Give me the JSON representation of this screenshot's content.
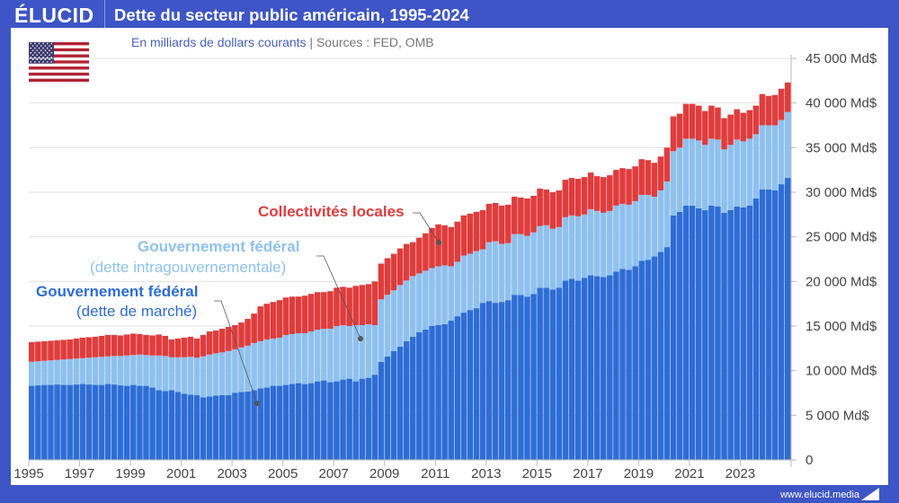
{
  "header": {
    "logo": "ÉLUCID",
    "title": "Dette du secteur public américain, 1995-2024"
  },
  "subtitle": {
    "unit": "En milliards de dollars courants",
    "sep": " | ",
    "sources": "Sources : FED, OMB"
  },
  "footer": {
    "site": "www.elucid.media"
  },
  "flag_icon": "us-flag",
  "colors": {
    "frame": "#3d55c6",
    "market": "#2e6dd5",
    "intra": "#8fc1ef",
    "local": "#e03c3c"
  },
  "annotations": {
    "local": "Collectivités locales",
    "intra_1": "Gouvernement fédéral",
    "intra_2": "(dette intragouvernementale)",
    "market_1": "Gouvernement fédéral",
    "market_2": "(dette de marché)"
  },
  "chart_data": {
    "type": "bar",
    "stacked": true,
    "frequency": "quarterly",
    "x_start": "1995 Q1",
    "x_end": "2024 Q4",
    "xticks": [
      "1995",
      "1997",
      "1999",
      "2001",
      "2003",
      "2005",
      "2007",
      "2009",
      "2011",
      "2013",
      "2015",
      "2017",
      "2019",
      "2021",
      "2023"
    ],
    "yticks": [
      "0",
      "5 000 Md$",
      "10 000 Md$",
      "15 000 Md$",
      "20 000 Md$",
      "25 000 Md$",
      "30 000 Md$",
      "35 000 Md$",
      "40 000 Md$",
      "45 000 Md$"
    ],
    "ylim": [
      0,
      45000
    ],
    "grid": true,
    "y_axis_side": "right",
    "series": [
      {
        "name": "Gouvernement fédéral (dette de marché)",
        "values": [
          8300,
          8350,
          8400,
          8400,
          8450,
          8400,
          8400,
          8450,
          8500,
          8450,
          8400,
          8400,
          8500,
          8450,
          8350,
          8300,
          8400,
          8300,
          8300,
          8100,
          7800,
          7700,
          7800,
          7600,
          7400,
          7300,
          7250,
          7000,
          7100,
          7200,
          7250,
          7250,
          7500,
          7600,
          7650,
          7800,
          8000,
          8100,
          8300,
          8300,
          8400,
          8500,
          8600,
          8500,
          8600,
          8800,
          8900,
          8700,
          8800,
          9000,
          9100,
          8800,
          9100,
          9200,
          9550,
          11000,
          11600,
          12200,
          12700,
          13300,
          13800,
          14300,
          14600,
          15000,
          15100,
          15200,
          15600,
          16100,
          16500,
          16800,
          17000,
          17600,
          17800,
          17600,
          17700,
          17900,
          18500,
          18500,
          18300,
          18600,
          19300,
          19300,
          19100,
          19300,
          20100,
          20300,
          20100,
          20400,
          20700,
          20600,
          20500,
          20700,
          21100,
          21400,
          21300,
          21700,
          22300,
          22400,
          22800,
          23300,
          23850,
          27400,
          27800,
          28500,
          28500,
          28200,
          28000,
          28500,
          28400,
          27700,
          28000,
          28400,
          28300,
          28500,
          29300,
          30300,
          30300,
          30200,
          30900,
          31600
        ]
      },
      {
        "name": "Gouvernement fédéral (dette intragouvernementale)",
        "values": [
          2700,
          2700,
          2700,
          2750,
          2750,
          2850,
          2900,
          2900,
          2900,
          3000,
          3100,
          3150,
          3100,
          3200,
          3300,
          3400,
          3350,
          3500,
          3450,
          3600,
          3900,
          3950,
          3700,
          3900,
          4100,
          4250,
          4200,
          4600,
          4700,
          4750,
          4800,
          4950,
          4900,
          5000,
          5150,
          5300,
          5300,
          5400,
          5300,
          5400,
          5600,
          5600,
          5600,
          5700,
          5800,
          5800,
          5800,
          6000,
          6200,
          6100,
          5900,
          6300,
          6000,
          6000,
          5550,
          7000,
          6900,
          6800,
          6900,
          6800,
          6800,
          6600,
          6600,
          6500,
          6600,
          6600,
          6100,
          6100,
          6400,
          6300,
          6400,
          6000,
          6600,
          6900,
          6500,
          6400,
          6800,
          6800,
          6800,
          6900,
          6900,
          7000,
          6800,
          6800,
          7100,
          7100,
          7200,
          7100,
          7400,
          7300,
          7200,
          7200,
          7400,
          7300,
          7300,
          7300,
          7400,
          7300,
          6700,
          6900,
          7350,
          7200,
          7200,
          7500,
          7500,
          7600,
          7300,
          7500,
          7500,
          7100,
          7300,
          7500,
          7400,
          7500,
          7200,
          7200,
          7200,
          7300,
          7200,
          7400
        ]
      },
      {
        "name": "Collectivités locales",
        "values": [
          2200,
          2200,
          2200,
          2200,
          2200,
          2200,
          2200,
          2250,
          2300,
          2300,
          2300,
          2350,
          2400,
          2350,
          2300,
          2350,
          2400,
          2300,
          2250,
          2250,
          2350,
          2250,
          2000,
          2100,
          2200,
          2250,
          2150,
          2400,
          2600,
          2550,
          2650,
          2700,
          2700,
          2800,
          3000,
          3300,
          3900,
          4000,
          4100,
          4200,
          4200,
          4200,
          4100,
          4200,
          4200,
          4200,
          4100,
          4200,
          4300,
          4300,
          4300,
          4400,
          4500,
          4500,
          4900,
          4000,
          4100,
          4100,
          4100,
          4100,
          3800,
          4000,
          4200,
          4500,
          4700,
          4500,
          4400,
          4500,
          4500,
          4500,
          4400,
          4400,
          4300,
          4300,
          4300,
          4300,
          4200,
          4100,
          4200,
          4100,
          4200,
          4000,
          4100,
          4100,
          4200,
          4200,
          4200,
          4200,
          4100,
          3900,
          4000,
          4000,
          4000,
          4000,
          4000,
          3900,
          4000,
          3900,
          3800,
          3800,
          3800,
          3900,
          3800,
          3900,
          3900,
          3900,
          3800,
          3700,
          3600,
          3500,
          3400,
          3400,
          3200,
          3200,
          3200,
          3500,
          3300,
          3400,
          3500,
          3300
        ]
      }
    ]
  }
}
